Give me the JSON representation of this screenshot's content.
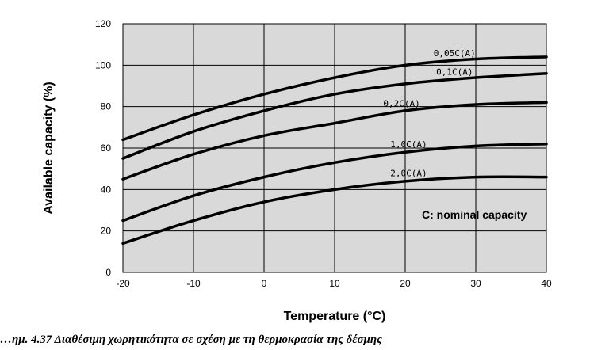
{
  "chart_data": {
    "type": "line",
    "xlabel": "Temperature (°C)",
    "ylabel": "Available capacity (%)",
    "xlim": [
      -20,
      40
    ],
    "ylim": [
      0,
      120
    ],
    "x_ticks": [
      -20,
      -10,
      0,
      10,
      20,
      30,
      40
    ],
    "y_ticks": [
      0,
      20,
      40,
      60,
      80,
      100,
      120
    ],
    "grid": true,
    "plot_background": "#d9d9d9",
    "line_color": "#000000",
    "x": [
      -20,
      -10,
      0,
      10,
      20,
      30,
      40
    ],
    "series": [
      {
        "name": "0,05C(A)",
        "values": [
          64,
          76,
          86,
          94,
          100,
          103,
          104
        ]
      },
      {
        "name": "0,1C(A)",
        "values": [
          55,
          68,
          78,
          86,
          91,
          94,
          96
        ]
      },
      {
        "name": "0,2C(A)",
        "values": [
          45,
          57,
          66,
          72,
          78,
          81,
          82
        ]
      },
      {
        "name": "1,0C(A)",
        "values": [
          25,
          37,
          46,
          53,
          58,
          61,
          62
        ]
      },
      {
        "name": "2,0C(A)",
        "values": [
          14,
          25,
          34,
          40,
          44,
          46,
          46
        ]
      }
    ],
    "annotation": "C: nominal capacity"
  },
  "caption": "…ημ. 4.37 Διαθέσιμη χωρητικότητα σε σχέση με τη θερμοκρασία της δέσμης"
}
